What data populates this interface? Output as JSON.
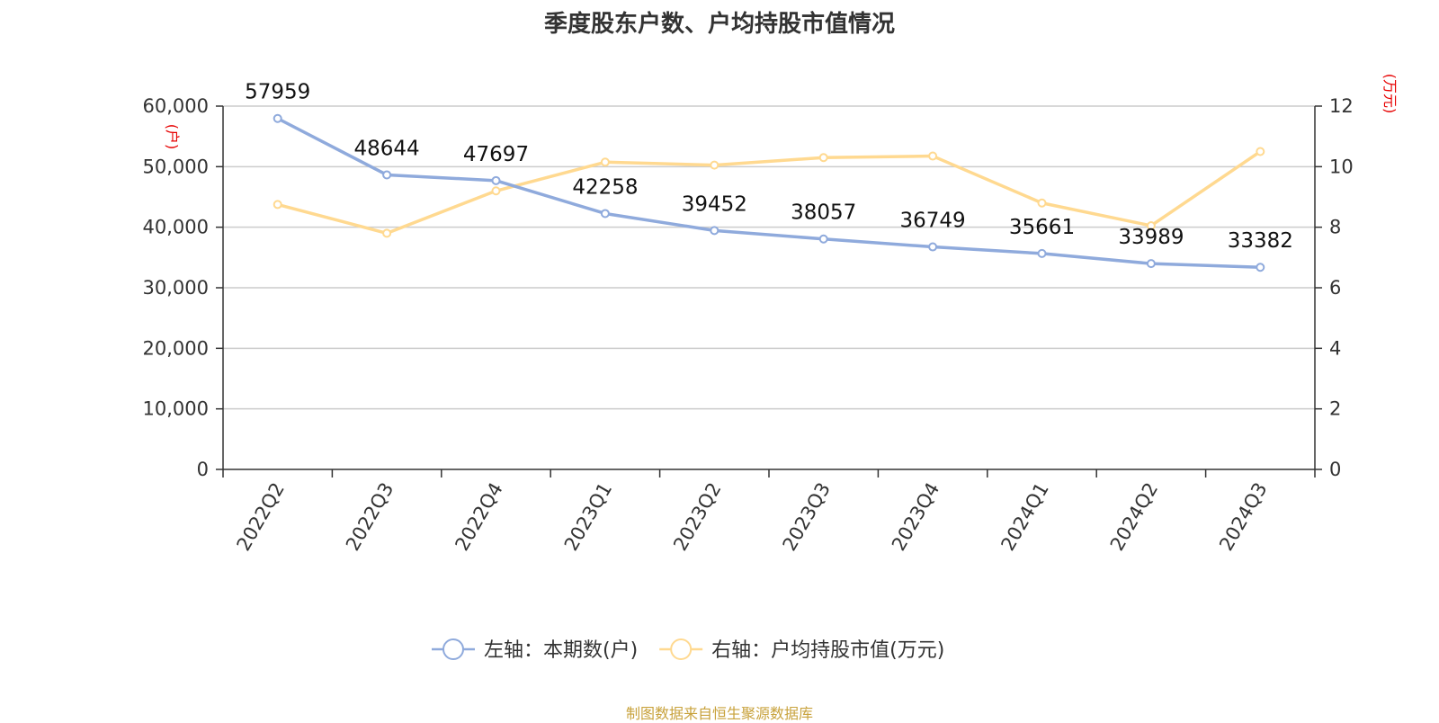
{
  "chart_data": {
    "type": "line",
    "title": "季度股东户数、户均持股市值情况",
    "categories": [
      "2022Q2",
      "2022Q3",
      "2022Q4",
      "2023Q1",
      "2023Q2",
      "2023Q3",
      "2023Q4",
      "2024Q1",
      "2024Q2",
      "2024Q3"
    ],
    "left_axis": {
      "unit": "(户)",
      "ylim": [
        0,
        60000
      ],
      "ticks": [
        "0",
        "10,000",
        "20,000",
        "30,000",
        "40,000",
        "50,000",
        "60,000"
      ]
    },
    "right_axis": {
      "unit": "(万元)",
      "ylim": [
        0,
        12
      ],
      "ticks": [
        "0",
        "2",
        "4",
        "6",
        "8",
        "10",
        "12"
      ]
    },
    "series": [
      {
        "name": "左轴：本期数(户)",
        "axis": "left",
        "color": "#8faadc",
        "values": [
          57959,
          48644,
          47697,
          42258,
          39452,
          38057,
          36749,
          35661,
          33989,
          33382
        ],
        "labels": [
          "57959",
          "48644",
          "47697",
          "42258",
          "39452",
          "38057",
          "36749",
          "35661",
          "33989",
          "33382"
        ]
      },
      {
        "name": "右轴：户均持股市值(万元)",
        "axis": "right",
        "color": "#ffd990",
        "values": [
          8.75,
          7.8,
          9.2,
          10.15,
          10.05,
          10.3,
          10.35,
          8.8,
          8.05,
          10.5
        ]
      }
    ],
    "grid": true,
    "legend_position": "bottom-center"
  },
  "source": "制图数据来自恒生聚源数据库",
  "colors": {
    "unit_red": "#e60000",
    "axis": "#333333",
    "grid": "#cccccc"
  }
}
